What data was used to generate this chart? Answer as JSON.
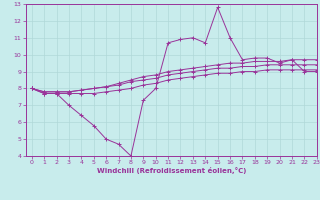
{
  "title": "",
  "xlabel": "Windchill (Refroidissement éolien,°C)",
  "ylabel": "",
  "xlim": [
    -0.5,
    23
  ],
  "ylim": [
    4,
    13
  ],
  "xticks": [
    0,
    1,
    2,
    3,
    4,
    5,
    6,
    7,
    8,
    9,
    10,
    11,
    12,
    13,
    14,
    15,
    16,
    17,
    18,
    19,
    20,
    21,
    22,
    23
  ],
  "yticks": [
    4,
    5,
    6,
    7,
    8,
    9,
    10,
    11,
    12,
    13
  ],
  "bg_color": "#c8ecec",
  "line_color": "#993399",
  "grid_color": "#b0d8d8",
  "series": [
    [
      8.0,
      7.7,
      7.7,
      7.0,
      6.4,
      5.8,
      5.0,
      4.7,
      4.0,
      7.3,
      8.0,
      10.7,
      10.9,
      11.0,
      10.7,
      12.8,
      11.0,
      9.7,
      9.8,
      9.8,
      9.5,
      9.7,
      9.0,
      9.0
    ],
    [
      8.0,
      7.7,
      7.7,
      7.7,
      7.7,
      7.7,
      7.8,
      7.9,
      8.0,
      8.2,
      8.3,
      8.5,
      8.6,
      8.7,
      8.8,
      8.9,
      8.9,
      9.0,
      9.0,
      9.1,
      9.1,
      9.1,
      9.1,
      9.1
    ],
    [
      8.0,
      7.8,
      7.8,
      7.8,
      7.9,
      8.0,
      8.1,
      8.2,
      8.4,
      8.5,
      8.6,
      8.8,
      8.9,
      9.0,
      9.1,
      9.2,
      9.2,
      9.3,
      9.3,
      9.4,
      9.4,
      9.4,
      9.4,
      9.4
    ],
    [
      8.0,
      7.8,
      7.8,
      7.8,
      7.9,
      8.0,
      8.1,
      8.3,
      8.5,
      8.7,
      8.8,
      9.0,
      9.1,
      9.2,
      9.3,
      9.4,
      9.5,
      9.5,
      9.6,
      9.6,
      9.6,
      9.7,
      9.7,
      9.7
    ]
  ],
  "figsize": [
    3.2,
    2.0
  ],
  "dpi": 100
}
